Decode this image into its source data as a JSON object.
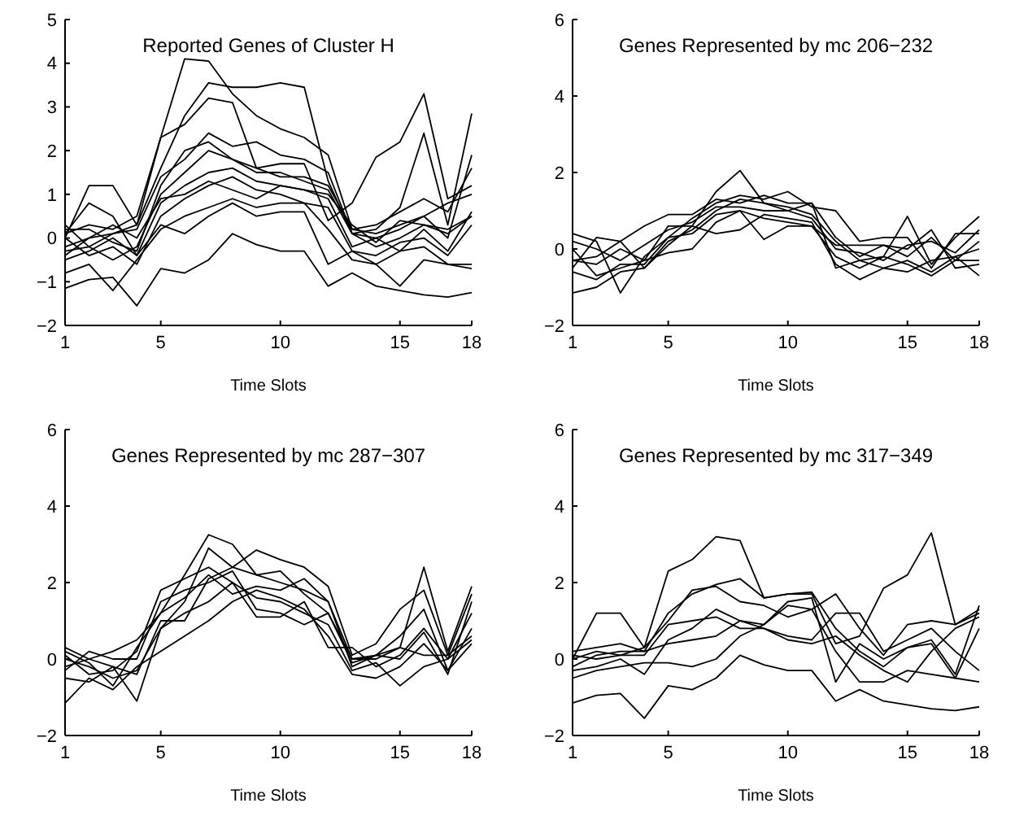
{
  "chart_data": [
    {
      "type": "line",
      "title": "Reported Genes of Cluster H",
      "xlabel": "Time Slots",
      "x": [
        1,
        2,
        3,
        4,
        5,
        6,
        7,
        8,
        9,
        10,
        11,
        12,
        13,
        14,
        15,
        16,
        17,
        18
      ],
      "xlim": [
        1,
        18
      ],
      "xticks": [
        1,
        5,
        10,
        15,
        18
      ],
      "ylim": [
        -2,
        5
      ],
      "yticks": [
        -2,
        -1,
        0,
        1,
        2,
        3,
        4,
        5
      ],
      "grid": false,
      "series": [
        {
          "color": "#000000",
          "values": [
            0.1,
            0.3,
            0.2,
            0.5,
            2.3,
            4.1,
            4.05,
            3.3,
            2.8,
            2.5,
            2.3,
            1.9,
            0.2,
            0.1,
            0.3,
            0.5,
            0.8,
            1.0
          ]
        },
        {
          "color": "#000000",
          "values": [
            -0.2,
            0,
            0.1,
            0.3,
            1.6,
            2.8,
            3.55,
            3.45,
            3.45,
            3.55,
            3.45,
            1.3,
            0.1,
            -0.2,
            0,
            0.3,
            0.2,
            0.5
          ]
        },
        {
          "color": "#000000",
          "values": [
            -1.15,
            -0.95,
            -0.9,
            -1.55,
            -0.7,
            -0.8,
            -0.5,
            0.1,
            -0.15,
            -0.3,
            -0.3,
            -1.1,
            -0.8,
            -1.1,
            -1.2,
            -1.3,
            -1.35,
            -1.25
          ]
        },
        {
          "color": "#000000",
          "values": [
            0,
            1.2,
            1.2,
            0.3,
            2.3,
            2.6,
            3.2,
            3.1,
            1.6,
            1.7,
            1.7,
            0.4,
            0.8,
            1.85,
            2.2,
            3.3,
            0.9,
            1.2
          ]
        },
        {
          "color": "#000000",
          "values": [
            -0.3,
            -0.2,
            0.1,
            0.2,
            1.4,
            1.8,
            2.4,
            2.1,
            2.2,
            1.9,
            1.8,
            1.5,
            0.1,
            0.2,
            0.7,
            2.4,
            0.3,
            2.85
          ]
        },
        {
          "color": "#000000",
          "values": [
            0.3,
            -0.2,
            -0.5,
            -0.2,
            1,
            1.5,
            2,
            1.8,
            1.5,
            1.5,
            1.3,
            1.1,
            0.1,
            0,
            0.2,
            0.5,
            0,
            1.9
          ]
        },
        {
          "color": "#000000",
          "values": [
            -0.5,
            -0.3,
            0,
            -0.4,
            0.8,
            1.2,
            1.5,
            1.6,
            1.3,
            1.2,
            1.1,
            0.9,
            -0.2,
            0,
            -0.3,
            0.2,
            -0.3,
            0.6
          ]
        },
        {
          "color": "#000000",
          "values": [
            0,
            -0.4,
            -0.2,
            -0.6,
            0.5,
            0.9,
            1.2,
            1.4,
            1.1,
            1.0,
            0.8,
            0.7,
            -0.3,
            -0.4,
            -0.1,
            0,
            -0.4,
            0.3
          ]
        },
        {
          "color": "#000000",
          "values": [
            -0.8,
            -0.6,
            -1.2,
            -0.5,
            0.2,
            0.5,
            0.7,
            0.9,
            0.7,
            0.8,
            0.8,
            0.2,
            -0.5,
            -0.6,
            -0.3,
            -0.2,
            -0.6,
            -0.7
          ]
        },
        {
          "color": "#000000",
          "values": [
            0.2,
            0.2,
            -0.1,
            -0.3,
            1.2,
            2,
            2.2,
            1.8,
            1.6,
            1.4,
            1.4,
            1.2,
            0.2,
            0.3,
            0.6,
            0.9,
            0.6,
            1.6
          ]
        },
        {
          "color": "#000000",
          "values": [
            -0.4,
            0,
            0.3,
            0,
            0.9,
            1.0,
            1.3,
            1.1,
            0.9,
            1.2,
            1.1,
            1.0,
            0.3,
            -0.1,
            0.4,
            0.3,
            0.1,
            0.5
          ]
        },
        {
          "color": "#000000",
          "values": [
            0.1,
            0.8,
            0.5,
            -0.4,
            0.3,
            0.1,
            0.5,
            0.8,
            0.5,
            0.6,
            0.6,
            -0.6,
            -0.3,
            -0.6,
            -1.1,
            -0.5,
            -0.6,
            -0.6
          ]
        }
      ]
    },
    {
      "type": "line",
      "title": "Genes Represented by mc 206−232",
      "xlabel": "Time Slots",
      "x": [
        1,
        2,
        3,
        4,
        5,
        6,
        7,
        8,
        9,
        10,
        11,
        12,
        13,
        14,
        15,
        16,
        17,
        18
      ],
      "xlim": [
        1,
        18
      ],
      "xticks": [
        1,
        5,
        10,
        15,
        18
      ],
      "ylim": [
        -2,
        6
      ],
      "yticks": [
        -2,
        0,
        2,
        4,
        6
      ],
      "grid": false,
      "series": [
        {
          "color": "#000000",
          "values": [
            -0.3,
            -0.2,
            0.2,
            -0.5,
            0.1,
            0.6,
            1.5,
            2.05,
            1.2,
            1.0,
            1.2,
            -0.5,
            -0.3,
            -0.2,
            0.85,
            -0.4,
            0.3,
            0.85
          ]
        },
        {
          "color": "#000000",
          "values": [
            -1.15,
            -1.0,
            -0.6,
            -0.5,
            0.2,
            0.5,
            1.0,
            1.3,
            1.2,
            1.1,
            0.9,
            0.2,
            -0.3,
            -0.5,
            -0.6,
            -0.3,
            -0.2,
            -0.7
          ]
        },
        {
          "color": "#000000",
          "values": [
            0.4,
            0.2,
            -1.15,
            -0.2,
            0.3,
            0.8,
            1.2,
            1.4,
            1.3,
            1.5,
            1.1,
            1.0,
            0.2,
            0.3,
            0.3,
            -0.5,
            0.4,
            0.4
          ]
        },
        {
          "color": "#000000",
          "values": [
            -0.5,
            0.3,
            0.2,
            0.6,
            0.9,
            0.9,
            1.3,
            1.2,
            1.4,
            1.2,
            1.2,
            0.3,
            -0.2,
            0.1,
            -0.2,
            0.3,
            -0.3,
            0.2
          ]
        },
        {
          "color": "#000000",
          "values": [
            0,
            -0.7,
            -0.5,
            -0.3,
            0.6,
            0.6,
            0.4,
            0.5,
            0.9,
            0.8,
            0.7,
            -0.4,
            -0.8,
            -0.5,
            -0.3,
            -0.6,
            -0.2,
            0
          ]
        },
        {
          "color": "#000000",
          "values": [
            -0.3,
            -0.4,
            0,
            -0.3,
            -0.1,
            0,
            0.7,
            1.0,
            0.25,
            0.6,
            0.6,
            0.1,
            0.1,
            0.1,
            0,
            0.5,
            -0.5,
            -0.4
          ]
        },
        {
          "color": "#000000",
          "values": [
            0.2,
            0,
            -0.3,
            0.1,
            0.5,
            0.7,
            1.1,
            1.1,
            1.0,
            1.0,
            0.8,
            0.0,
            -0.1,
            -0.3,
            0.1,
            0.2,
            -0.1,
            0.5
          ]
        },
        {
          "color": "#000000",
          "values": [
            -0.6,
            -0.8,
            -0.4,
            -0.4,
            0.3,
            0.4,
            0.9,
            1.0,
            0.8,
            0.7,
            0.6,
            -0.2,
            -0.5,
            -0.2,
            -0.4,
            -0.7,
            -0.3,
            -0.3
          ]
        }
      ]
    },
    {
      "type": "line",
      "title": "Genes Represented by mc 287−307",
      "xlabel": "Time Slots",
      "x": [
        1,
        2,
        3,
        4,
        5,
        6,
        7,
        8,
        9,
        10,
        11,
        12,
        13,
        14,
        15,
        16,
        17,
        18
      ],
      "xlim": [
        1,
        18
      ],
      "xticks": [
        1,
        5,
        10,
        15,
        18
      ],
      "ylim": [
        -2,
        6
      ],
      "yticks": [
        -2,
        0,
        2,
        4,
        6
      ],
      "grid": false,
      "series": [
        {
          "color": "#000000",
          "values": [
            -0.2,
            0,
            0.2,
            0.5,
            1.2,
            2.2,
            3.25,
            3.0,
            2.2,
            2.0,
            1.8,
            1.5,
            -0.2,
            0.1,
            0.3,
            2.4,
            0.2,
            1.9
          ]
        },
        {
          "color": "#000000",
          "values": [
            0.3,
            0,
            -0.2,
            -1.1,
            0.8,
            1.5,
            2.9,
            2.4,
            2.85,
            2.6,
            2.4,
            1.9,
            0.1,
            0.4,
            1.3,
            1.8,
            0.1,
            1.7
          ]
        },
        {
          "color": "#000000",
          "values": [
            -1.15,
            -0.5,
            -0.8,
            -0.2,
            0.2,
            0.6,
            1.0,
            1.5,
            1.8,
            1.6,
            1.3,
            0.6,
            -0.4,
            -0.5,
            -0.2,
            0.4,
            -0.3,
            0.4
          ]
        },
        {
          "color": "#000000",
          "values": [
            0.1,
            -0.4,
            -0.3,
            0.2,
            1.8,
            2.1,
            2.4,
            2.0,
            1.6,
            1.5,
            1.2,
            0.9,
            -0.3,
            -0.1,
            -0.7,
            -0.2,
            0,
            1.2
          ]
        },
        {
          "color": "#000000",
          "values": [
            -0.3,
            0.2,
            0,
            0,
            1.5,
            1.8,
            2.0,
            2.3,
            1.3,
            1.2,
            0.9,
            1.2,
            0.0,
            0.1,
            0.6,
            1.3,
            -0.3,
            0.8
          ]
        },
        {
          "color": "#000000",
          "values": [
            0,
            -0.2,
            -0.5,
            -0.3,
            0.8,
            1.2,
            1.5,
            2.0,
            1.1,
            1.1,
            1.5,
            0.3,
            0.3,
            -0.2,
            0.1,
            0.8,
            0,
            0.5
          ]
        },
        {
          "color": "#000000",
          "values": [
            -0.5,
            -0.6,
            -0.2,
            -0.4,
            1.0,
            1.0,
            2.1,
            2.4,
            2.2,
            2.3,
            1.7,
            1.2,
            -0.1,
            0.1,
            0,
            0.7,
            -0.4,
            1.5
          ]
        },
        {
          "color": "#000000",
          "values": [
            0.2,
            -0.1,
            -0.7,
            0.3,
            1.2,
            1.6,
            2.2,
            1.7,
            1.9,
            1.8,
            2.1,
            1.5,
            0,
            0,
            0.3,
            0.1,
            0.1,
            0.6
          ]
        }
      ]
    },
    {
      "type": "line",
      "title": "Genes Represented by mc 317−349",
      "xlabel": "Time Slots",
      "x": [
        1,
        2,
        3,
        4,
        5,
        6,
        7,
        8,
        9,
        10,
        11,
        12,
        13,
        14,
        15,
        16,
        17,
        18
      ],
      "xlim": [
        1,
        18
      ],
      "xticks": [
        1,
        5,
        10,
        15,
        18
      ],
      "ylim": [
        -2,
        6
      ],
      "yticks": [
        -2,
        0,
        2,
        4,
        6
      ],
      "grid": false,
      "series": [
        {
          "color": "#000000",
          "values": [
            0,
            1.2,
            1.2,
            0.3,
            2.3,
            2.6,
            3.2,
            3.1,
            1.6,
            1.7,
            1.7,
            0.4,
            0.6,
            1.85,
            2.2,
            3.3,
            0.9,
            1.2
          ]
        },
        {
          "color": "#000000",
          "values": [
            -1.15,
            -0.95,
            -0.9,
            -1.55,
            -0.7,
            -0.8,
            -0.5,
            0.1,
            -0.15,
            -0.3,
            -0.3,
            -1.1,
            -0.8,
            -1.1,
            -1.2,
            -1.3,
            -1.35,
            -1.25
          ]
        },
        {
          "color": "#000000",
          "values": [
            -0.2,
            0.1,
            0.2,
            0.2,
            1.2,
            1.7,
            1.95,
            2.1,
            1.6,
            1.7,
            1.75,
            0.8,
            0.2,
            -0.2,
            0.3,
            0.5,
            -0.4,
            1.4
          ]
        },
        {
          "color": "#000000",
          "values": [
            0,
            0.2,
            0.1,
            0.3,
            1.0,
            1.8,
            1.9,
            1.5,
            1.4,
            1.1,
            1.3,
            1.7,
            0.8,
            0.1,
            0.9,
            1.0,
            0.9,
            1.3
          ]
        },
        {
          "color": "#000000",
          "values": [
            -0.3,
            -0.2,
            0,
            -0.4,
            0.5,
            0.8,
            1.3,
            1.0,
            0.9,
            1.5,
            1.6,
            -0.6,
            0.4,
            0,
            0.3,
            0.4,
            -0.5,
            0.8
          ]
        },
        {
          "color": "#000000",
          "values": [
            0.1,
            0.0,
            0.1,
            0.1,
            0.9,
            1.0,
            1.1,
            0.8,
            0.8,
            0.6,
            0.5,
            1.2,
            1.2,
            0.2,
            0.5,
            0.8,
            0.2,
            -0.3
          ]
        },
        {
          "color": "#000000",
          "values": [
            -0.5,
            -0.3,
            -0.2,
            -0.1,
            -0.1,
            -0.2,
            0,
            0.6,
            0.9,
            1.4,
            1.3,
            0.2,
            -0.6,
            -0.6,
            -0.3,
            -0.4,
            -0.5,
            -0.6
          ]
        },
        {
          "color": "#000000",
          "values": [
            0.2,
            0.3,
            0.4,
            0.2,
            0.4,
            0.5,
            0.6,
            1.0,
            0.8,
            0.5,
            0.4,
            0.6,
            0.1,
            -0.3,
            -0.6,
            0.2,
            0.8,
            1.1
          ]
        }
      ]
    }
  ]
}
